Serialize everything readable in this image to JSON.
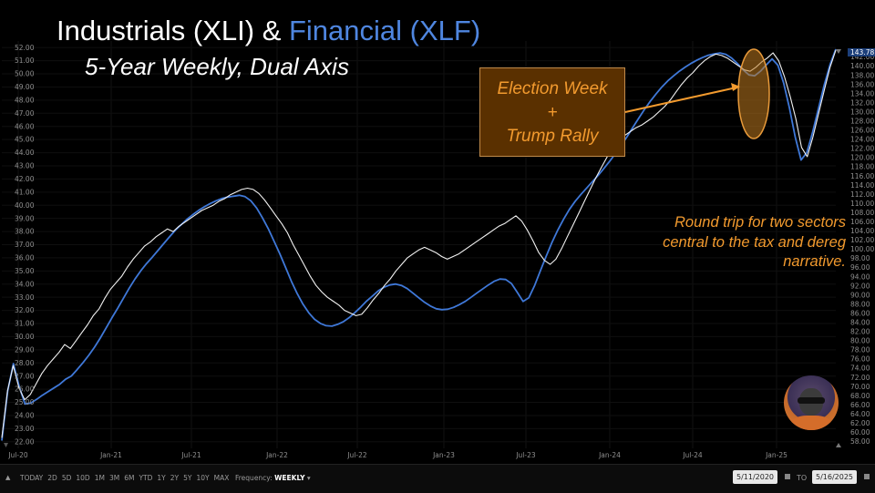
{
  "title": {
    "part1": "Industrials (XLI) & ",
    "part2": "Financial (XLF)",
    "subtitle": "5-Year Weekly, Dual Axis"
  },
  "callout": {
    "line1": "Election Week",
    "line2": "+",
    "line3": "Trump Rally"
  },
  "note": "Round trip for two sectors central to the tax and dereg narrative.",
  "colors": {
    "background": "#000000",
    "xli": "#f2f2f2",
    "xlf": "#3f78d8",
    "annotation": "#f29a2e",
    "callout_fill": "#5a3000"
  },
  "toolbar": {
    "ranges": [
      "TODAY",
      "2D",
      "5D",
      "10D",
      "1M",
      "3M",
      "6M",
      "YTD",
      "1Y",
      "2Y",
      "5Y",
      "10Y",
      "MAX"
    ],
    "frequency_label": "Frequency:",
    "frequency_value": "WEEKLY",
    "start_date": "5/11/2020",
    "to_label": "TO",
    "end_date": "5/16/2025"
  },
  "chart_data": {
    "type": "line",
    "x_ticks": [
      "Jul-20",
      "Jan-21",
      "Jul-21",
      "Jan-22",
      "Jul-22",
      "Jan-23",
      "Jul-23",
      "Jan-24",
      "Jul-24",
      "Jan-25"
    ],
    "left_axis": {
      "ticks": [
        "22.00",
        "23.00",
        "24.00",
        "25.00",
        "26.00",
        "27.00",
        "28.00",
        "29.00",
        "30.00",
        "31.00",
        "32.00",
        "33.00",
        "34.00",
        "35.00",
        "36.00",
        "37.00",
        "38.00",
        "39.00",
        "40.00",
        "41.00",
        "42.00",
        "43.00",
        "44.00",
        "45.00",
        "46.00",
        "47.00",
        "48.00",
        "49.00",
        "50.00",
        "51.00",
        "52.00"
      ],
      "range": [
        21.5,
        52.5
      ]
    },
    "right_axis": {
      "ticks": [
        "58.00",
        "60.00",
        "62.00",
        "64.00",
        "66.00",
        "68.00",
        "70.00",
        "72.00",
        "74.00",
        "76.00",
        "78.00",
        "80.00",
        "82.00",
        "84.00",
        "86.00",
        "88.00",
        "90.00",
        "92.00",
        "94.00",
        "96.00",
        "98.00",
        "100.00",
        "102.00",
        "104.00",
        "106.00",
        "108.00",
        "110.00",
        "112.00",
        "114.00",
        "116.00",
        "118.00",
        "120.00",
        "122.00",
        "124.00",
        "126.00",
        "128.00",
        "130.00",
        "132.00",
        "134.00",
        "136.00",
        "138.00",
        "140.00",
        "142.00"
      ],
      "range": [
        56.5,
        145.5
      ],
      "last_value_label": "143.78"
    },
    "series": [
      {
        "axis": "left",
        "values": [
          22.3,
          25.9,
          27.8,
          26.1,
          25.2,
          25.6,
          26.4,
          27.2,
          27.8,
          28.3,
          28.8,
          29.4,
          29.1,
          29.7,
          30.3,
          30.9,
          31.6,
          32.1,
          32.9,
          33.6,
          34.1,
          34.6,
          35.3,
          35.9,
          36.4,
          36.9,
          37.2,
          37.6,
          37.9,
          38.2,
          38.0,
          38.4,
          38.7,
          39.0,
          39.3,
          39.6,
          39.8,
          40.0,
          40.3,
          40.5,
          40.8,
          41.0,
          41.2,
          41.3,
          41.2,
          40.9,
          40.4,
          39.8,
          39.2,
          38.6,
          37.9,
          37.0,
          36.2,
          35.4,
          34.6,
          33.9,
          33.4,
          33.0,
          32.7,
          32.4,
          32.0,
          31.8,
          31.6,
          31.7,
          32.2,
          32.8,
          33.3,
          33.9,
          34.4,
          35.0,
          35.5,
          36.0,
          36.3,
          36.6,
          36.8,
          36.6,
          36.4,
          36.1,
          35.9,
          36.1,
          36.3,
          36.6,
          36.9,
          37.2,
          37.5,
          37.8,
          38.1,
          38.4,
          38.6,
          38.9,
          39.2,
          38.8,
          38.1,
          37.3,
          36.4,
          35.8,
          35.5,
          35.9,
          36.7,
          37.6,
          38.5,
          39.4,
          40.3,
          41.2,
          42.1,
          42.9,
          43.7,
          44.3,
          44.8,
          45.3,
          45.6,
          45.9,
          46.1,
          46.4,
          46.7,
          47.1,
          47.5,
          48.0,
          48.6,
          49.2,
          49.7,
          50.1,
          50.6,
          51.0,
          51.3,
          51.5,
          51.4,
          51.2,
          50.9,
          50.6,
          50.3,
          50.2,
          50.5,
          50.9,
          51.2,
          51.6,
          51.0,
          49.8,
          48.3,
          46.6,
          44.4,
          43.7,
          45.2,
          47.0,
          48.8,
          50.5,
          51.8
        ]
      },
      {
        "axis": "right",
        "values": [
          58.2,
          69.0,
          75.0,
          70.0,
          66.2,
          66.4,
          67.2,
          68.1,
          68.9,
          69.7,
          70.5,
          71.6,
          72.3,
          73.7,
          75.2,
          76.8,
          78.6,
          80.6,
          82.8,
          85.0,
          87.1,
          89.3,
          91.5,
          93.5,
          95.3,
          96.9,
          98.3,
          99.8,
          101.3,
          102.8,
          104.2,
          105.4,
          106.6,
          107.6,
          108.5,
          109.3,
          110.0,
          110.6,
          111.1,
          111.4,
          111.6,
          111.8,
          111.5,
          110.6,
          109.0,
          106.9,
          104.5,
          101.8,
          99.0,
          96.0,
          93.0,
          90.3,
          88.0,
          86.1,
          84.7,
          83.8,
          83.3,
          83.2,
          83.6,
          84.2,
          85.1,
          86.2,
          87.4,
          88.7,
          89.8,
          90.9,
          91.7,
          92.2,
          92.4,
          92.1,
          91.4,
          90.4,
          89.4,
          88.4,
          87.6,
          87.0,
          86.8,
          86.9,
          87.3,
          87.9,
          88.6,
          89.5,
          90.4,
          91.3,
          92.2,
          93.0,
          93.5,
          93.4,
          92.5,
          90.6,
          88.6,
          89.4,
          92.1,
          95.3,
          98.5,
          101.5,
          104.2,
          106.6,
          108.7,
          110.5,
          112.0,
          113.4,
          114.8,
          116.2,
          117.7,
          119.3,
          121.0,
          122.8,
          124.7,
          126.7,
          128.7,
          130.6,
          132.4,
          134.0,
          135.5,
          136.8,
          137.9,
          138.9,
          139.8,
          140.6,
          141.3,
          141.9,
          142.4,
          142.7,
          142.9,
          142.6,
          141.8,
          140.6,
          139.2,
          138.1,
          137.9,
          138.9,
          140.3,
          141.6,
          140.2,
          136.3,
          130.8,
          124.5,
          119.5,
          121.1,
          125.6,
          130.7,
          135.9,
          140.3,
          143.7
        ]
      }
    ]
  }
}
